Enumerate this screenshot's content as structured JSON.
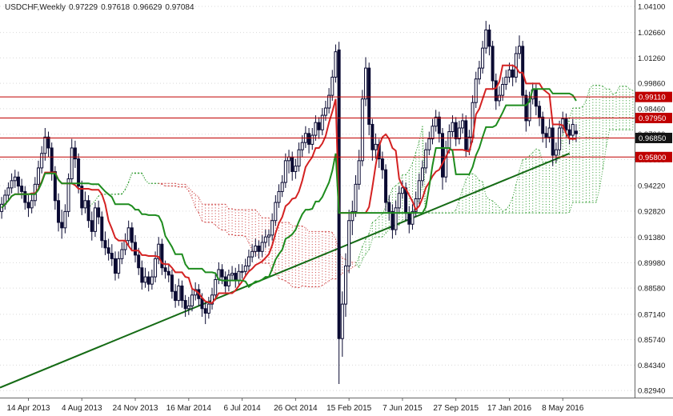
{
  "header": {
    "symbol_period": "USDCHF,Weekly",
    "open": "0.97229",
    "high": "0.97618",
    "low": "0.96629",
    "close": "0.97084"
  },
  "colors": {
    "background": "#ffffff",
    "candle_outline": "#0a0a32",
    "bull_fill": "#ffffff",
    "bear_fill": "#0a0a32",
    "tenkan": "#d42222",
    "kijun": "#1e8c1e",
    "cloud_green": "#2f9b2f",
    "cloud_red": "#cc3b3b",
    "hline": "#c00000",
    "trendline": "#156b15",
    "grid": "#d9d9d9",
    "axis_text": "#1a1a1a",
    "axis_line": "#666666",
    "badge_text": "#ffffff"
  },
  "y_axis": {
    "ticks": [
      "1.04100",
      "1.02660",
      "1.01260",
      "0.99860",
      "0.98460",
      "0.97060",
      "0.95660",
      "0.94220",
      "0.92820",
      "0.91380",
      "0.89980",
      "0.88580",
      "0.87140",
      "0.85740",
      "0.84340",
      "0.82940"
    ]
  },
  "x_axis": {
    "labels": [
      {
        "slot": 8,
        "text": "14 Apr 2013"
      },
      {
        "slot": 24,
        "text": "4 Aug 2013"
      },
      {
        "slot": 40,
        "text": "24 Nov 2013"
      },
      {
        "slot": 56,
        "text": "16 Mar 2014"
      },
      {
        "slot": 72,
        "text": "6 Jul 2014"
      },
      {
        "slot": 88,
        "text": "26 Oct 2014"
      },
      {
        "slot": 104,
        "text": "15 Feb 2015"
      },
      {
        "slot": 120,
        "text": "7 Jun 2015"
      },
      {
        "slot": 136,
        "text": "27 Sep 2015"
      },
      {
        "slot": 152,
        "text": "17 Jan 2016"
      },
      {
        "slot": 168,
        "text": "8 May 2016"
      }
    ]
  },
  "chart_data": {
    "type": "candlestick",
    "symbol": "USDCHF",
    "timeframe": "Weekly",
    "title": "USDCHF,Weekly 0.97229 0.97618 0.96629 0.97084",
    "price_range": {
      "top": 1.0445,
      "bottom": 0.8255
    },
    "slots": 190,
    "ichimoku": {
      "tenkan": 9,
      "kijun": 26,
      "senkou_b": 52,
      "shift": 26
    },
    "trendline": {
      "from_slot": 0,
      "from_price": 0.831,
      "to_slot": 170,
      "to_price": 0.96
    },
    "hlines": [
      {
        "price": 0.9911,
        "label": "0.99110",
        "badge_bg": "#c00000"
      },
      {
        "price": 0.9795,
        "label": "0.97950",
        "badge_bg": "#c00000"
      },
      {
        "price": 0.9685,
        "label": "0.96850",
        "badge_bg": "#141414"
      },
      {
        "price": 0.958,
        "label": "0.95800",
        "badge_bg": "#c00000"
      }
    ],
    "candles": [
      [
        0.928,
        0.936,
        0.924,
        0.932
      ],
      [
        0.932,
        0.94,
        0.929,
        0.937
      ],
      [
        0.937,
        0.944,
        0.934,
        0.941
      ],
      [
        0.941,
        0.949,
        0.938,
        0.945
      ],
      [
        0.945,
        0.951,
        0.941,
        0.947
      ],
      [
        0.947,
        0.95,
        0.938,
        0.942
      ],
      [
        0.942,
        0.946,
        0.935,
        0.939
      ],
      [
        0.939,
        0.942,
        0.929,
        0.933
      ],
      [
        0.933,
        0.937,
        0.925,
        0.93
      ],
      [
        0.93,
        0.938,
        0.927,
        0.934
      ],
      [
        0.934,
        0.947,
        0.931,
        0.943
      ],
      [
        0.943,
        0.956,
        0.94,
        0.952
      ],
      [
        0.952,
        0.964,
        0.949,
        0.96
      ],
      [
        0.96,
        0.974,
        0.956,
        0.969
      ],
      [
        0.969,
        0.972,
        0.958,
        0.963
      ],
      [
        0.963,
        0.966,
        0.945,
        0.95
      ],
      [
        0.95,
        0.953,
        0.929,
        0.934
      ],
      [
        0.934,
        0.938,
        0.917,
        0.922
      ],
      [
        0.922,
        0.929,
        0.913,
        0.919
      ],
      [
        0.919,
        0.932,
        0.916,
        0.928
      ],
      [
        0.928,
        0.949,
        0.925,
        0.946
      ],
      [
        0.946,
        0.968,
        0.943,
        0.963
      ],
      [
        0.963,
        0.967,
        0.952,
        0.957
      ],
      [
        0.957,
        0.96,
        0.938,
        0.942
      ],
      [
        0.942,
        0.945,
        0.926,
        0.93
      ],
      [
        0.93,
        0.939,
        0.927,
        0.934
      ],
      [
        0.934,
        0.937,
        0.919,
        0.923
      ],
      [
        0.923,
        0.928,
        0.912,
        0.917
      ],
      [
        0.917,
        0.933,
        0.914,
        0.93
      ],
      [
        0.93,
        0.934,
        0.921,
        0.925
      ],
      [
        0.925,
        0.928,
        0.908,
        0.912
      ],
      [
        0.912,
        0.917,
        0.904,
        0.908
      ],
      [
        0.908,
        0.913,
        0.901,
        0.905
      ],
      [
        0.905,
        0.91,
        0.898,
        0.902
      ],
      [
        0.902,
        0.906,
        0.89,
        0.894
      ],
      [
        0.894,
        0.906,
        0.891,
        0.902
      ],
      [
        0.902,
        0.911,
        0.899,
        0.907
      ],
      [
        0.907,
        0.916,
        0.904,
        0.912
      ],
      [
        0.912,
        0.923,
        0.909,
        0.919
      ],
      [
        0.919,
        0.922,
        0.907,
        0.911
      ],
      [
        0.911,
        0.915,
        0.9,
        0.904
      ],
      [
        0.904,
        0.908,
        0.893,
        0.897
      ],
      [
        0.897,
        0.901,
        0.885,
        0.889
      ],
      [
        0.889,
        0.897,
        0.886,
        0.892
      ],
      [
        0.892,
        0.895,
        0.884,
        0.888
      ],
      [
        0.888,
        0.896,
        0.885,
        0.892
      ],
      [
        0.892,
        0.906,
        0.889,
        0.902
      ],
      [
        0.902,
        0.914,
        0.899,
        0.91
      ],
      [
        0.91,
        0.913,
        0.893,
        0.897
      ],
      [
        0.897,
        0.901,
        0.891,
        0.895
      ],
      [
        0.895,
        0.899,
        0.889,
        0.893
      ],
      [
        0.893,
        0.896,
        0.88,
        0.884
      ],
      [
        0.884,
        0.888,
        0.875,
        0.879
      ],
      [
        0.879,
        0.891,
        0.876,
        0.887
      ],
      [
        0.887,
        0.89,
        0.875,
        0.879
      ],
      [
        0.879,
        0.882,
        0.87,
        0.8745
      ],
      [
        0.8745,
        0.881,
        0.871,
        0.876
      ],
      [
        0.876,
        0.886,
        0.873,
        0.882
      ],
      [
        0.882,
        0.889,
        0.879,
        0.885
      ],
      [
        0.885,
        0.888,
        0.876,
        0.88
      ],
      [
        0.88,
        0.883,
        0.87,
        0.8745
      ],
      [
        0.8745,
        0.878,
        0.866,
        0.872
      ],
      [
        0.872,
        0.881,
        0.869,
        0.877
      ],
      [
        0.877,
        0.886,
        0.874,
        0.882
      ],
      [
        0.882,
        0.894,
        0.879,
        0.8905
      ],
      [
        0.8905,
        0.9,
        0.888,
        0.896
      ],
      [
        0.896,
        0.899,
        0.888,
        0.892
      ],
      [
        0.892,
        0.895,
        0.883,
        0.887
      ],
      [
        0.887,
        0.896,
        0.884,
        0.893
      ],
      [
        0.893,
        0.898,
        0.89,
        0.894
      ],
      [
        0.894,
        0.897,
        0.886,
        0.89
      ],
      [
        0.89,
        0.899,
        0.887,
        0.895
      ],
      [
        0.895,
        0.899,
        0.891,
        0.895
      ],
      [
        0.895,
        0.902,
        0.892,
        0.898
      ],
      [
        0.898,
        0.907,
        0.895,
        0.903
      ],
      [
        0.903,
        0.91,
        0.9,
        0.906
      ],
      [
        0.906,
        0.913,
        0.903,
        0.909
      ],
      [
        0.909,
        0.912,
        0.902,
        0.906
      ],
      [
        0.906,
        0.915,
        0.903,
        0.911
      ],
      [
        0.911,
        0.918,
        0.908,
        0.914
      ],
      [
        0.914,
        0.918,
        0.909,
        0.915
      ],
      [
        0.915,
        0.927,
        0.912,
        0.923
      ],
      [
        0.923,
        0.937,
        0.92,
        0.933
      ],
      [
        0.933,
        0.943,
        0.93,
        0.939
      ],
      [
        0.939,
        0.948,
        0.936,
        0.944
      ],
      [
        0.944,
        0.96,
        0.941,
        0.956
      ],
      [
        0.956,
        0.962,
        0.949,
        0.958
      ],
      [
        0.958,
        0.961,
        0.945,
        0.95
      ],
      [
        0.95,
        0.957,
        0.946,
        0.953
      ],
      [
        0.953,
        0.966,
        0.95,
        0.962
      ],
      [
        0.962,
        0.97,
        0.958,
        0.966
      ],
      [
        0.966,
        0.975,
        0.963,
        0.971
      ],
      [
        0.971,
        0.974,
        0.96,
        0.965
      ],
      [
        0.965,
        0.974,
        0.962,
        0.97
      ],
      [
        0.97,
        0.981,
        0.967,
        0.977
      ],
      [
        0.977,
        0.98,
        0.968,
        0.973
      ],
      [
        0.973,
        0.985,
        0.97,
        0.981
      ],
      [
        0.981,
        0.989,
        0.978,
        0.985
      ],
      [
        0.985,
        0.996,
        0.982,
        0.992
      ],
      [
        0.992,
        1.006,
        0.989,
        1.002
      ],
      [
        1.002,
        1.02,
        0.999,
        1.016
      ],
      [
        1.017,
        1.0215,
        0.833,
        0.858
      ],
      [
        0.858,
        0.884,
        0.848,
        0.877
      ],
      [
        0.877,
        0.905,
        0.87,
        0.898
      ],
      [
        0.898,
        0.929,
        0.894,
        0.923
      ],
      [
        0.923,
        0.934,
        0.915,
        0.928
      ],
      [
        0.928,
        0.948,
        0.925,
        0.943
      ],
      [
        0.943,
        0.962,
        0.94,
        0.956
      ],
      [
        0.956,
        0.995,
        0.953,
        0.99
      ],
      [
        0.99,
        1.013,
        0.986,
        1.007
      ],
      [
        1.007,
        1.01,
        0.97,
        0.976
      ],
      [
        0.976,
        0.979,
        0.956,
        0.962
      ],
      [
        0.962,
        0.971,
        0.957,
        0.965
      ],
      [
        0.965,
        0.968,
        0.952,
        0.957
      ],
      [
        0.957,
        0.961,
        0.946,
        0.951
      ],
      [
        0.951,
        0.954,
        0.928,
        0.933
      ],
      [
        0.933,
        0.937,
        0.923,
        0.928
      ],
      [
        0.928,
        0.932,
        0.913,
        0.918
      ],
      [
        0.918,
        0.934,
        0.915,
        0.93
      ],
      [
        0.93,
        0.942,
        0.927,
        0.938
      ],
      [
        0.938,
        0.945,
        0.935,
        0.941
      ],
      [
        0.941,
        0.944,
        0.923,
        0.927
      ],
      [
        0.927,
        0.931,
        0.916,
        0.921
      ],
      [
        0.921,
        0.932,
        0.918,
        0.928
      ],
      [
        0.928,
        0.939,
        0.925,
        0.935
      ],
      [
        0.935,
        0.949,
        0.932,
        0.945
      ],
      [
        0.945,
        0.956,
        0.942,
        0.952
      ],
      [
        0.952,
        0.966,
        0.949,
        0.962
      ],
      [
        0.962,
        0.972,
        0.959,
        0.968
      ],
      [
        0.968,
        0.979,
        0.965,
        0.975
      ],
      [
        0.975,
        0.984,
        0.972,
        0.98
      ],
      [
        0.98,
        0.983,
        0.966,
        0.971
      ],
      [
        0.971,
        0.974,
        0.94,
        0.947
      ],
      [
        0.947,
        0.967,
        0.944,
        0.963
      ],
      [
        0.963,
        0.976,
        0.96,
        0.972
      ],
      [
        0.972,
        0.981,
        0.969,
        0.977
      ],
      [
        0.977,
        0.98,
        0.964,
        0.968
      ],
      [
        0.968,
        0.978,
        0.965,
        0.974
      ],
      [
        0.974,
        0.982,
        0.971,
        0.978
      ],
      [
        0.978,
        0.981,
        0.958,
        0.962
      ],
      [
        0.962,
        0.973,
        0.959,
        0.969
      ],
      [
        0.969,
        0.992,
        0.966,
        0.988
      ],
      [
        0.988,
        1.005,
        0.985,
        1.001
      ],
      [
        1.001,
        1.011,
        0.998,
        1.007
      ],
      [
        1.007,
        1.022,
        1.004,
        1.018
      ],
      [
        1.018,
        1.033,
        1.015,
        1.028
      ],
      [
        1.028,
        1.031,
        1.014,
        1.019
      ],
      [
        1.019,
        1.022,
        0.995,
        1.0
      ],
      [
        1.0,
        1.004,
        0.984,
        0.989
      ],
      [
        0.989,
        0.997,
        0.986,
        0.992
      ],
      [
        0.992,
        1.002,
        0.989,
        0.998
      ],
      [
        0.998,
        1.006,
        0.995,
        1.002
      ],
      [
        1.002,
        1.01,
        0.999,
        1.006
      ],
      [
        1.006,
        1.009,
        0.997,
        1.002
      ],
      [
        1.002,
        1.019,
        0.999,
        1.015
      ],
      [
        1.015,
        1.025,
        1.012,
        1.019
      ],
      [
        1.019,
        1.022,
        0.987,
        0.992
      ],
      [
        0.992,
        0.995,
        0.972,
        0.978
      ],
      [
        0.978,
        0.994,
        0.975,
        0.99
      ],
      [
        0.99,
        0.999,
        0.987,
        0.995
      ],
      [
        0.995,
        0.998,
        0.981,
        0.986
      ],
      [
        0.986,
        0.989,
        0.975,
        0.98
      ],
      [
        0.98,
        0.983,
        0.966,
        0.971
      ],
      [
        0.971,
        0.975,
        0.963,
        0.969
      ],
      [
        0.969,
        0.979,
        0.966,
        0.974
      ],
      [
        0.974,
        0.977,
        0.953,
        0.959
      ],
      [
        0.959,
        0.966,
        0.955,
        0.962
      ],
      [
        0.962,
        0.978,
        0.959,
        0.974
      ],
      [
        0.974,
        0.983,
        0.971,
        0.979
      ],
      [
        0.979,
        0.982,
        0.969,
        0.973
      ],
      [
        0.973,
        0.976,
        0.965,
        0.97
      ],
      [
        0.97,
        0.979,
        0.967,
        0.976
      ],
      [
        0.97229,
        0.97618,
        0.96629,
        0.97084
      ]
    ]
  }
}
